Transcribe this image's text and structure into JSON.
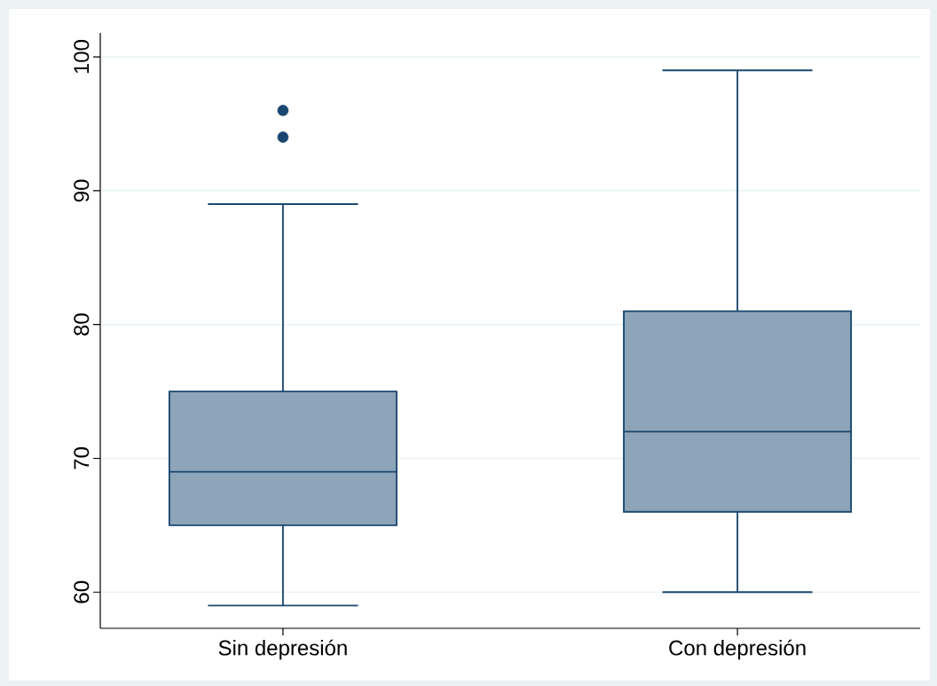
{
  "chart_data": {
    "type": "box",
    "categories": [
      "Sin depresión",
      "Con depresión"
    ],
    "boxes": [
      {
        "low": 59,
        "q1": 65,
        "median": 69,
        "q3": 75,
        "high": 89,
        "outliers": [
          96,
          94
        ]
      },
      {
        "low": 60,
        "q1": 66,
        "median": 72,
        "q3": 81,
        "high": 99
      }
    ],
    "color": "#8ea5b9",
    "ylim": [
      57.3,
      101.8
    ],
    "yticks": [
      60,
      70,
      80,
      90,
      100
    ],
    "grid": "y"
  }
}
